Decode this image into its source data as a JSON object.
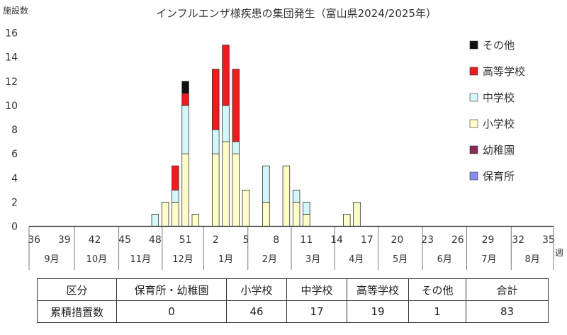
{
  "chart_data": {
    "type": "bar",
    "stacked": true,
    "title": "インフルエンザ様疾患の集団発生（富山県2024/2025年）",
    "ylabel": "施設数",
    "xlabel": "週",
    "ylim": [
      0,
      16
    ],
    "yticks": [
      "0",
      "2",
      "4",
      "6",
      "8",
      "10",
      "12",
      "14",
      "16"
    ],
    "grid": false,
    "legend_position": "right",
    "x": [
      36,
      37,
      38,
      39,
      40,
      41,
      42,
      43,
      44,
      45,
      46,
      47,
      48,
      49,
      50,
      51,
      52,
      1,
      2,
      3,
      4,
      5,
      6,
      7,
      8,
      9,
      10,
      11,
      12,
      13,
      14,
      15,
      16,
      17,
      18,
      19,
      20,
      21,
      22,
      23,
      24,
      25,
      26,
      27,
      28,
      29,
      30,
      31,
      32,
      33,
      34,
      35
    ],
    "xticks": [
      "36",
      "39",
      "42",
      "45",
      "48",
      "51",
      "2",
      "5",
      "8",
      "11",
      "14",
      "17",
      "20",
      "23",
      "26",
      "29",
      "32",
      "35"
    ],
    "months": [
      "9月",
      "10月",
      "11月",
      "12月",
      "1月",
      "2月",
      "3月",
      "4月",
      "5月",
      "6月",
      "7月",
      "8月"
    ],
    "series": [
      {
        "name": "保育所",
        "color": "#8c8cf0",
        "values": [
          0,
          0,
          0,
          0,
          0,
          0,
          0,
          0,
          0,
          0,
          0,
          0,
          0,
          0,
          0,
          0,
          0,
          0,
          0,
          0,
          0,
          0,
          0,
          0,
          0,
          0,
          0,
          0,
          0,
          0,
          0,
          0,
          0,
          0,
          0,
          0,
          0,
          0,
          0,
          0,
          0,
          0,
          0,
          0,
          0,
          0,
          0,
          0,
          0,
          0,
          0,
          0
        ]
      },
      {
        "name": "幼稚園",
        "color": "#8b2a5a",
        "values": [
          0,
          0,
          0,
          0,
          0,
          0,
          0,
          0,
          0,
          0,
          0,
          0,
          0,
          0,
          0,
          0,
          0,
          0,
          0,
          0,
          0,
          0,
          0,
          0,
          0,
          0,
          0,
          0,
          0,
          0,
          0,
          0,
          0,
          0,
          0,
          0,
          0,
          0,
          0,
          0,
          0,
          0,
          0,
          0,
          0,
          0,
          0,
          0,
          0,
          0,
          0,
          0
        ]
      },
      {
        "name": "小学校",
        "color": "#fdfdc8",
        "values": [
          0,
          0,
          0,
          0,
          0,
          0,
          0,
          0,
          0,
          0,
          0,
          0,
          0,
          2,
          2,
          6,
          1,
          0,
          6,
          7,
          6,
          3,
          0,
          2,
          0,
          5,
          2,
          1,
          0,
          0,
          0,
          1,
          2,
          0,
          0,
          0,
          0,
          0,
          0,
          0,
          0,
          0,
          0,
          0,
          0,
          0,
          0,
          0,
          0,
          0,
          0,
          0
        ]
      },
      {
        "name": "中学校",
        "color": "#d3f7fb",
        "values": [
          0,
          0,
          0,
          0,
          0,
          0,
          0,
          0,
          0,
          0,
          0,
          0,
          1,
          0,
          1,
          4,
          0,
          0,
          2,
          3,
          1,
          0,
          0,
          3,
          0,
          0,
          1,
          1,
          0,
          0,
          0,
          0,
          0,
          0,
          0,
          0,
          0,
          0,
          0,
          0,
          0,
          0,
          0,
          0,
          0,
          0,
          0,
          0,
          0,
          0,
          0,
          0
        ]
      },
      {
        "name": "高等学校",
        "color": "#ee1c1c",
        "values": [
          0,
          0,
          0,
          0,
          0,
          0,
          0,
          0,
          0,
          0,
          0,
          0,
          0,
          0,
          2,
          1,
          0,
          0,
          5,
          5,
          6,
          0,
          0,
          0,
          0,
          0,
          0,
          0,
          0,
          0,
          0,
          0,
          0,
          0,
          0,
          0,
          0,
          0,
          0,
          0,
          0,
          0,
          0,
          0,
          0,
          0,
          0,
          0,
          0,
          0,
          0,
          0
        ]
      },
      {
        "name": "その他",
        "color": "#111111",
        "values": [
          0,
          0,
          0,
          0,
          0,
          0,
          0,
          0,
          0,
          0,
          0,
          0,
          0,
          0,
          0,
          1,
          0,
          0,
          0,
          0,
          0,
          0,
          0,
          0,
          0,
          0,
          0,
          0,
          0,
          0,
          0,
          0,
          0,
          0,
          0,
          0,
          0,
          0,
          0,
          0,
          0,
          0,
          0,
          0,
          0,
          0,
          0,
          0,
          0,
          0,
          0,
          0
        ]
      }
    ],
    "legend_order": [
      "その他",
      "高等学校",
      "中学校",
      "小学校",
      "幼稚園",
      "保育所"
    ]
  },
  "summary_table": {
    "headers": [
      "区分",
      "保育所・幼稚園",
      "小学校",
      "中学校",
      "高等学校",
      "その他",
      "合計"
    ],
    "row_label": "累積措置数",
    "values": [
      "0",
      "46",
      "17",
      "19",
      "1",
      "83"
    ]
  }
}
